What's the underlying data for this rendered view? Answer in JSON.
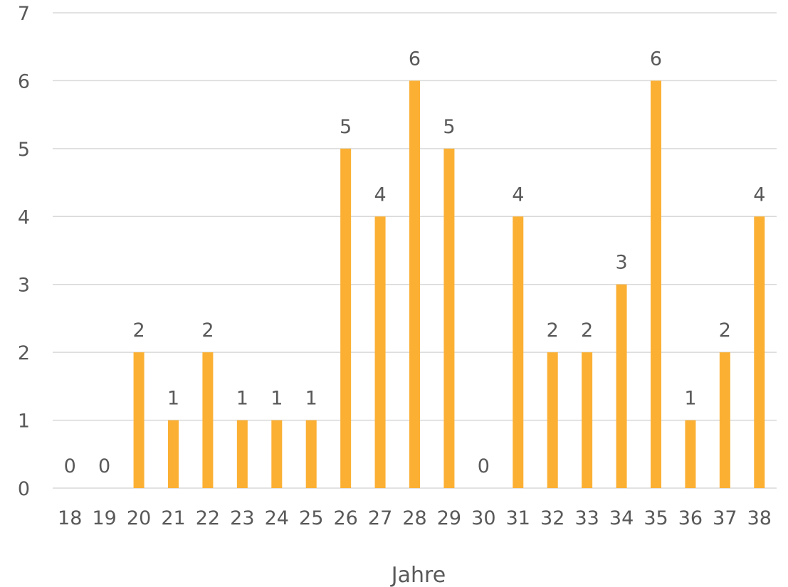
{
  "chart_data": {
    "type": "bar",
    "title": "",
    "xlabel": "Jahre",
    "ylabel": "",
    "ylim": [
      0,
      7
    ],
    "yticks": [
      0,
      1,
      2,
      3,
      4,
      5,
      6,
      7
    ],
    "grid": true,
    "legend": "none",
    "bar_color": "#FBB034",
    "categories": [
      "18",
      "19",
      "20",
      "21",
      "22",
      "23",
      "24",
      "25",
      "26",
      "27",
      "28",
      "29",
      "30",
      "31",
      "32",
      "33",
      "34",
      "35",
      "36",
      "37",
      "38"
    ],
    "values": [
      0,
      0,
      2,
      1,
      2,
      1,
      1,
      1,
      5,
      4,
      6,
      5,
      0,
      4,
      2,
      2,
      3,
      6,
      1,
      2,
      4
    ]
  }
}
